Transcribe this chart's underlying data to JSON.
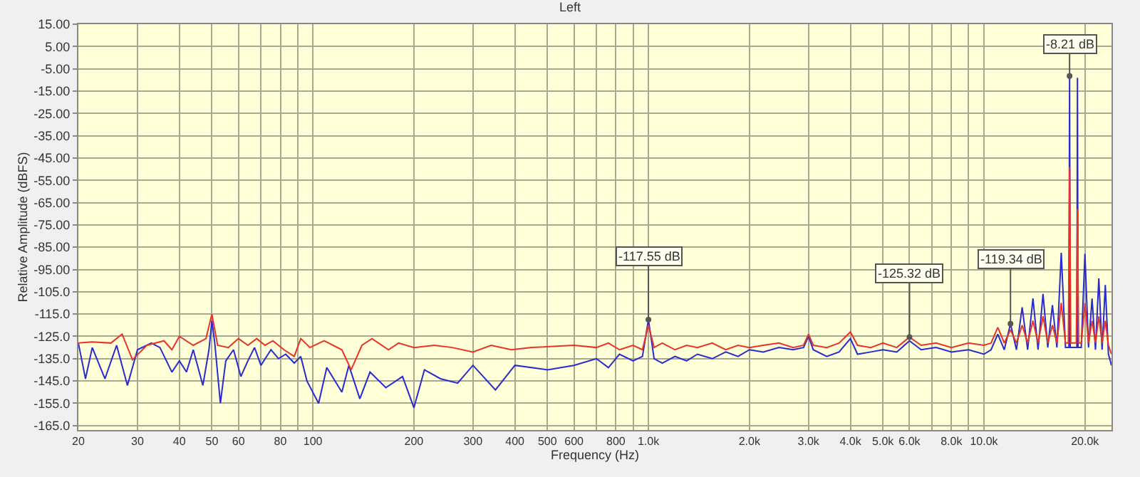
{
  "chart_data": {
    "type": "line",
    "title": "Left",
    "xlabel": "Frequency (Hz)",
    "ylabel": "Relative Amplitude (dBFS)",
    "log": "x",
    "grid": true,
    "marker": "none",
    "line_style": "solid",
    "xlim": [
      20,
      24000
    ],
    "ylim": [
      -167,
      15
    ],
    "xticks": [
      20,
      30,
      40,
      50,
      60,
      {
        "value": 70,
        "label": null
      },
      80,
      {
        "value": 90,
        "label": null
      },
      100,
      200,
      300,
      400,
      500,
      600,
      {
        "value": 700,
        "label": null
      },
      800,
      {
        "value": 900,
        "label": null
      },
      {
        "value": 1000,
        "label": "1.0k"
      },
      {
        "value": 2000,
        "label": "2.0k"
      },
      {
        "value": 3000,
        "label": "3.0k"
      },
      {
        "value": 4000,
        "label": "4.0k"
      },
      {
        "value": 5000,
        "label": "5.0k"
      },
      {
        "value": 6000,
        "label": "6.0k"
      },
      {
        "value": 7000,
        "label": null
      },
      {
        "value": 8000,
        "label": "8.0k"
      },
      {
        "value": 9000,
        "label": null
      },
      {
        "value": 10000,
        "label": "10.0k"
      },
      {
        "value": 20000,
        "label": "20.0k"
      }
    ],
    "yticks": [
      {
        "value": 15,
        "label": "15.00"
      },
      {
        "value": 5,
        "label": "5.00"
      },
      {
        "value": -5,
        "label": "-5.00"
      },
      {
        "value": -15,
        "label": "-15.00"
      },
      {
        "value": -25,
        "label": "-25.00"
      },
      {
        "value": -35,
        "label": "-35.00"
      },
      {
        "value": -45,
        "label": "-45.00"
      },
      {
        "value": -55,
        "label": "-55.00"
      },
      {
        "value": -65,
        "label": "-65.00"
      },
      {
        "value": -75,
        "label": "-75.00"
      },
      {
        "value": -85,
        "label": "-85.00"
      },
      {
        "value": -95,
        "label": "-95.00"
      },
      {
        "value": -105,
        "label": "-105.0"
      },
      {
        "value": -115,
        "label": "-115.0"
      },
      {
        "value": -125,
        "label": "-125.0"
      },
      {
        "value": -135,
        "label": "-135.0"
      },
      {
        "value": -145,
        "label": "-145.0"
      },
      {
        "value": -155,
        "label": "-155.0"
      },
      {
        "value": -165,
        "label": "-165.0"
      }
    ],
    "series": [
      {
        "color": "#e8322a",
        "x": [
          20,
          22,
          25,
          27,
          29,
          32,
          36,
          38,
          40,
          44,
          48,
          50,
          52,
          56,
          60,
          64,
          68,
          72,
          76,
          82,
          88,
          92,
          98,
          108,
          122,
          130,
          140,
          150,
          168,
          180,
          200,
          230,
          260,
          300,
          340,
          390,
          450,
          600,
          700,
          760,
          820,
          900,
          960,
          1000,
          1040,
          1100,
          1200,
          1300,
          1400,
          1550,
          1700,
          1850,
          2000,
          2200,
          2450,
          2700,
          2900,
          3000,
          3100,
          3400,
          3700,
          4000,
          4200,
          4600,
          5000,
          5500,
          6000,
          6500,
          7200,
          8000,
          9000,
          10000,
          10500,
          11000,
          11500,
          12000,
          12500,
          13000,
          13500,
          14000,
          14500,
          15000,
          15500,
          16000,
          16500,
          17000,
          17500,
          17850,
          18000,
          18150,
          18500,
          18850,
          19000,
          19150,
          19500,
          20000,
          20500,
          21000,
          21500,
          22000,
          22500,
          23000,
          23500,
          24000
        ],
        "values": [
          -128,
          -127.5,
          -128,
          -124,
          -135.5,
          -129,
          -127,
          -131,
          -125,
          -129,
          -126,
          -115,
          -129,
          -130,
          -126,
          -129,
          -126,
          -129,
          -127,
          -131,
          -134,
          -126,
          -130,
          -127,
          -131,
          -140,
          -129,
          -126,
          -131,
          -128,
          -130,
          -129,
          -130,
          -132,
          -129,
          -131,
          -130,
          -129,
          -130,
          -128,
          -131,
          -129,
          -131,
          -120,
          -130,
          -128,
          -131,
          -129,
          -130,
          -128,
          -131,
          -129,
          -130,
          -129,
          -128,
          -130,
          -129,
          -124,
          -129,
          -130,
          -128,
          -123,
          -129,
          -130,
          -128,
          -130,
          -125.32,
          -129,
          -128,
          -130,
          -128,
          -129,
          -128,
          -121,
          -128,
          -122,
          -128,
          -120,
          -128,
          -118,
          -128,
          -116,
          -128,
          -120,
          -128,
          -110,
          -128,
          -128,
          -49,
          -128,
          -128,
          -128,
          -68,
          -128,
          -128,
          -110,
          -128,
          -118,
          -128,
          -116,
          -128,
          -118,
          -129,
          -133
        ]
      },
      {
        "color": "#2a2ad0",
        "x": [
          20,
          21,
          22,
          24,
          26,
          28,
          30,
          33,
          35,
          38,
          40,
          42,
          44,
          47,
          49,
          50,
          51,
          53,
          55,
          58,
          61,
          64,
          67,
          70,
          75,
          79,
          83,
          88,
          92,
          96,
          104,
          110,
          122,
          128,
          138,
          148,
          165,
          185,
          200,
          215,
          240,
          270,
          300,
          350,
          400,
          500,
          600,
          700,
          760,
          820,
          900,
          960,
          1000,
          1040,
          1100,
          1200,
          1300,
          1400,
          1550,
          1700,
          1850,
          2000,
          2200,
          2450,
          2700,
          2900,
          3000,
          3100,
          3400,
          3700,
          4000,
          4200,
          4600,
          5000,
          5500,
          6000,
          6500,
          7200,
          8000,
          9000,
          10000,
          10500,
          11000,
          11500,
          12000,
          12500,
          13000,
          13500,
          14000,
          14500,
          15000,
          15500,
          16000,
          16500,
          17000,
          17500,
          17920,
          18000,
          18080,
          18500,
          18920,
          19000,
          19080,
          19500,
          20000,
          20500,
          21000,
          21500,
          22000,
          22500,
          23000,
          23500,
          24000
        ],
        "values": [
          -128,
          -144,
          -130,
          -144,
          -129,
          -147,
          -131,
          -128,
          -130,
          -141,
          -136,
          -141,
          -131,
          -147,
          -131,
          -118,
          -128,
          -155,
          -136,
          -131,
          -143,
          -136,
          -130,
          -138,
          -131,
          -135,
          -133,
          -137,
          -134,
          -145,
          -155,
          -139,
          -150,
          -138,
          -153,
          -141,
          -148,
          -143,
          -157,
          -140,
          -144,
          -146,
          -138,
          -149,
          -138,
          -140,
          -138,
          -135,
          -139,
          -133,
          -136,
          -134,
          -117.55,
          -135,
          -137,
          -134,
          -136,
          -133,
          -135,
          -132,
          -134,
          -131,
          -132,
          -130,
          -131,
          -130,
          -125,
          -131,
          -134,
          -132,
          -126,
          -133,
          -132,
          -131,
          -132,
          -127,
          -131,
          -130,
          -132,
          -131,
          -133,
          -131,
          -124,
          -131,
          -119.34,
          -131,
          -112,
          -131,
          -108,
          -131,
          -106,
          -130,
          -111,
          -130,
          -87.5,
          -130,
          -130,
          -8.21,
          -130,
          -130,
          -130,
          -9,
          -130,
          -130,
          -88,
          -130,
          -108,
          -131,
          -99,
          -131,
          -102,
          -133,
          -138
        ]
      }
    ],
    "annotations": [
      {
        "text": "-8.21 dB",
        "x": 18000,
        "y": -8.21
      },
      {
        "text": "-117.55 dB",
        "x": 1000,
        "y": -117.55
      },
      {
        "text": "-125.32 dB",
        "x": 6000,
        "y": -125.32
      },
      {
        "text": "-119.34 dB",
        "x": 12000,
        "y": -119.34
      }
    ]
  }
}
